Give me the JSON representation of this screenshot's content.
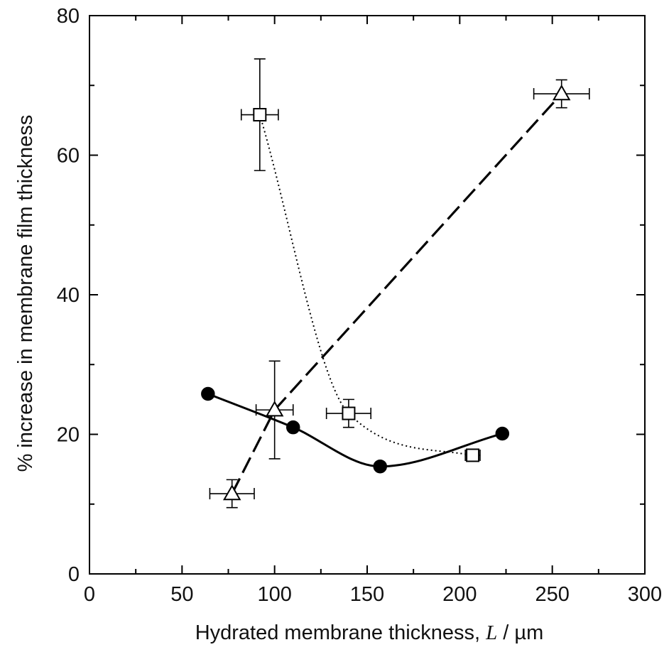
{
  "chart_data": {
    "type": "scatter",
    "title": "",
    "xlabel": "Hydrated membrane thickness, ",
    "xlabel_symbol": "L",
    "xlabel_unit": " / µm",
    "ylabel": "% increase in membrane film thickness",
    "xlim": [
      0,
      300
    ],
    "ylim": [
      0,
      80
    ],
    "x_ticks": [
      0,
      50,
      100,
      150,
      200,
      250,
      300
    ],
    "y_ticks": [
      0,
      20,
      40,
      60,
      80
    ],
    "x_tick_labels": [
      "0",
      "50",
      "100",
      "150",
      "200",
      "250",
      "300"
    ],
    "y_tick_labels": [
      "0",
      "20",
      "40",
      "60",
      "80"
    ],
    "x_minor_step": 25,
    "y_minor_step": 10,
    "grid": false,
    "legend": "none",
    "series": [
      {
        "marker": "filled-circle",
        "line_style": "solid-smooth",
        "points": [
          {
            "x": 64,
            "y": 25.8
          },
          {
            "x": 110,
            "y": 21.0
          },
          {
            "x": 157,
            "y": 15.4
          },
          {
            "x": 223,
            "y": 20.1
          }
        ]
      },
      {
        "marker": "open-square",
        "line_style": "dotted-smooth",
        "points": [
          {
            "x": 92,
            "y": 65.8,
            "xerr": 10,
            "yerr": 8
          },
          {
            "x": 140,
            "y": 23.0,
            "xerr": 12,
            "yerr": 2
          },
          {
            "x": 207,
            "y": 17.0,
            "xerr": 4,
            "yerr": 0.8
          }
        ]
      },
      {
        "marker": "open-triangle",
        "line_style": "dashed",
        "points": [
          {
            "x": 77,
            "y": 11.5,
            "xerr": 12,
            "yerr": 2
          },
          {
            "x": 100,
            "y": 23.5,
            "xerr": 10,
            "yerr": 7
          },
          {
            "x": 255,
            "y": 68.8,
            "xerr": 15,
            "yerr": 2
          }
        ]
      }
    ]
  }
}
